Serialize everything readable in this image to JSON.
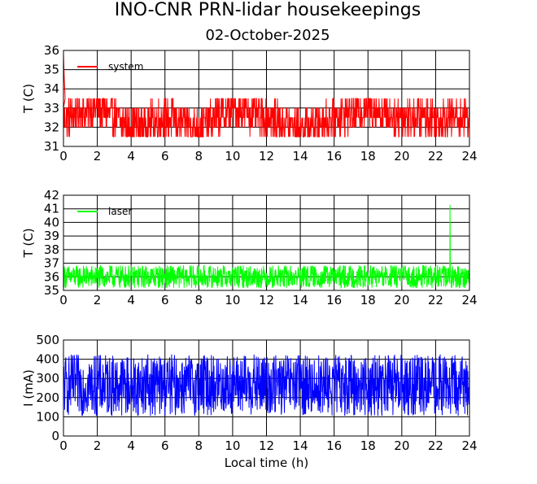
{
  "title": "INO-CNR PRN-lidar housekeepings",
  "subtitle": "02-October-2025",
  "chart_data": [
    {
      "type": "line",
      "ylabel": "T (C)",
      "xlabel": "",
      "xlim": [
        0,
        24
      ],
      "ylim": [
        31,
        36
      ],
      "x_ticks": [
        "0",
        "2",
        "4",
        "6",
        "8",
        "10",
        "12",
        "14",
        "16",
        "18",
        "20",
        "22",
        "24"
      ],
      "y_ticks": [
        "31",
        "32",
        "33",
        "34",
        "35",
        "36"
      ],
      "grid": true,
      "legend_position": "top-left",
      "series": [
        {
          "name": "system",
          "color": "#ff0000",
          "baseline": 32.5,
          "noise_range": [
            31.5,
            33.5
          ],
          "startup": [
            {
              "x": 0.0,
              "y": 35.8
            },
            {
              "x": 0.05,
              "y": 34.5
            },
            {
              "x": 0.1,
              "y": 33.5
            }
          ],
          "x": [
            0,
            2,
            4,
            6,
            8,
            10,
            12,
            14,
            16,
            18,
            20,
            22,
            24
          ],
          "y": [
            32.5,
            33.0,
            32.0,
            32.5,
            32.0,
            33.0,
            32.5,
            32.0,
            32.5,
            33.0,
            32.5,
            32.5,
            32.5
          ]
        }
      ]
    },
    {
      "type": "line",
      "ylabel": "T (C)",
      "xlabel": "",
      "xlim": [
        0,
        24
      ],
      "ylim": [
        35,
        42
      ],
      "x_ticks": [
        "0",
        "2",
        "4",
        "6",
        "8",
        "10",
        "12",
        "14",
        "16",
        "18",
        "20",
        "22",
        "24"
      ],
      "y_ticks": [
        "35",
        "36",
        "37",
        "38",
        "39",
        "40",
        "41",
        "42"
      ],
      "grid": true,
      "legend_position": "top-left",
      "series": [
        {
          "name": "laser",
          "color": "#00ff00",
          "baseline": 36.0,
          "noise_range": [
            35.2,
            36.9
          ],
          "spike": {
            "x": 22.85,
            "y": 41.3
          },
          "x": [
            0,
            2,
            4,
            6,
            8,
            10,
            12,
            14,
            16,
            18,
            20,
            22,
            24
          ],
          "y": [
            36.0,
            36.0,
            36.0,
            36.0,
            36.0,
            36.0,
            36.0,
            36.0,
            36.0,
            36.0,
            36.0,
            36.0,
            36.0
          ]
        }
      ]
    },
    {
      "type": "line",
      "ylabel": "I (mA)",
      "xlabel": "Local time (h)",
      "xlim": [
        0,
        24
      ],
      "ylim": [
        0,
        500
      ],
      "x_ticks": [
        "0",
        "2",
        "4",
        "6",
        "8",
        "10",
        "12",
        "14",
        "16",
        "18",
        "20",
        "22",
        "24"
      ],
      "y_ticks": [
        "0",
        "100",
        "200",
        "300",
        "400",
        "500"
      ],
      "grid": true,
      "legend_position": "top-left",
      "series": [
        {
          "name": "",
          "color": "#0000ff",
          "baseline": 265,
          "noise_range": [
            105,
            425
          ],
          "x": [
            0,
            2,
            4,
            6,
            8,
            10,
            12,
            14,
            16,
            18,
            20,
            22,
            24
          ],
          "y": [
            265,
            265,
            265,
            265,
            265,
            265,
            265,
            265,
            265,
            265,
            265,
            265,
            265
          ]
        }
      ]
    }
  ]
}
